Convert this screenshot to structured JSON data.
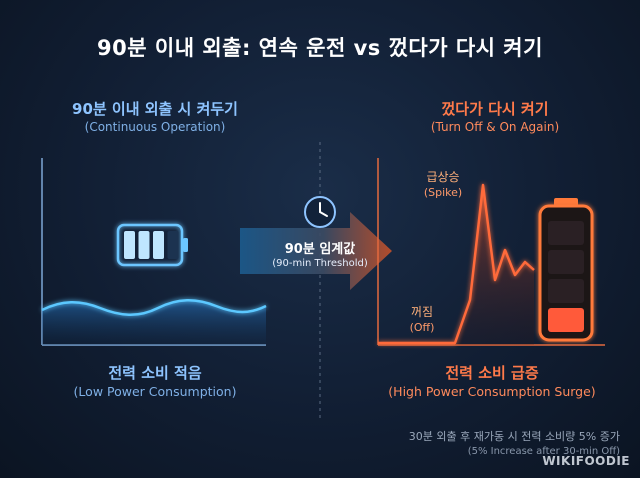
{
  "title": "90분 이내 외출: 연속 운전 vs 껐다가 다시 켜기",
  "left": {
    "heading": "90분 이내 외출 시 켜두기",
    "subheading": "(Continuous Operation)",
    "footer": "전력 소비 적음",
    "footer_sub": "(Low Power Consumption)",
    "battery_level": 0.75,
    "accent": "#4fb7ff"
  },
  "center": {
    "arrow_label": "90분 임계값",
    "arrow_sub": "(90-min Threshold)",
    "icon": "clock-icon"
  },
  "right": {
    "heading": "껐다가 다시 켜기",
    "subheading": "(Turn Off & On Again)",
    "spike_label": "급상승",
    "spike_sub": "(Spike)",
    "off_label": "꺼짐",
    "off_sub": "(Off)",
    "footer": "전력 소비 급증",
    "footer_sub": "(High Power Consumption Surge)",
    "battery_level": 0.3,
    "accent": "#ff5a2a"
  },
  "note": {
    "line1": "30분 외출 후 재가동 시 전력 소비량 5% 증가",
    "line2": "(5% Increase after 30-min Off)"
  },
  "watermark": "WIKIFOODIE"
}
